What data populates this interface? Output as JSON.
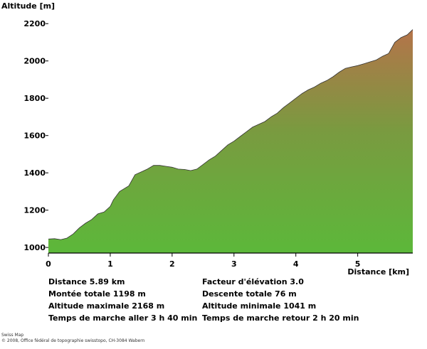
{
  "chart_data": {
    "type": "area",
    "ylabel": "Altitude [m]",
    "xlabel": "Distance [km]",
    "xlim": [
      0,
      5.89
    ],
    "ylim": [
      970,
      2220
    ],
    "x_ticks": [
      "0",
      "1",
      "2",
      "3",
      "4",
      "5"
    ],
    "y_ticks": [
      "1000",
      "1200",
      "1400",
      "1600",
      "1800",
      "2000",
      "2200"
    ],
    "grid": false,
    "colors": {
      "low": "#5cb83a",
      "high": "#b5734a",
      "line": "#333333"
    },
    "x": [
      0,
      0.1,
      0.2,
      0.3,
      0.4,
      0.5,
      0.6,
      0.7,
      0.8,
      0.9,
      1.0,
      1.05,
      1.15,
      1.3,
      1.4,
      1.5,
      1.6,
      1.7,
      1.8,
      1.9,
      2.0,
      2.1,
      2.2,
      2.3,
      2.4,
      2.5,
      2.6,
      2.7,
      2.8,
      2.9,
      3.0,
      3.1,
      3.2,
      3.3,
      3.4,
      3.5,
      3.6,
      3.7,
      3.8,
      3.9,
      4.0,
      4.1,
      4.2,
      4.3,
      4.4,
      4.5,
      4.6,
      4.7,
      4.8,
      4.9,
      5.0,
      5.1,
      5.2,
      5.3,
      5.4,
      5.5,
      5.6,
      5.7,
      5.8,
      5.89
    ],
    "y": [
      1045,
      1047,
      1042,
      1050,
      1072,
      1105,
      1130,
      1150,
      1180,
      1190,
      1220,
      1255,
      1300,
      1330,
      1390,
      1405,
      1420,
      1440,
      1440,
      1435,
      1430,
      1420,
      1418,
      1412,
      1420,
      1445,
      1470,
      1490,
      1520,
      1550,
      1570,
      1595,
      1620,
      1645,
      1660,
      1675,
      1700,
      1720,
      1750,
      1775,
      1800,
      1825,
      1845,
      1860,
      1880,
      1895,
      1915,
      1940,
      1960,
      1968,
      1975,
      1985,
      1995,
      2005,
      2025,
      2040,
      2100,
      2125,
      2140,
      2168
    ]
  },
  "stats": {
    "distance": "Distance 5.89 km",
    "elevation_factor": "Facteur d'élévation 3.0",
    "ascent": "Montée totale  1198 m",
    "descent": "Descente totale  76 m",
    "max_alt": "Altitude maximale  2168 m",
    "min_alt": "Altitude minimale  1041 m",
    "time_out": "Temps de marche aller  3 h 40 min",
    "time_back": "Temps de marche retour  2 h 20 min"
  },
  "credits": {
    "line1": "Swiss Map",
    "line2": "© 2008, Office fédéral de topographie swisstopo, CH-3084 Wabern"
  }
}
